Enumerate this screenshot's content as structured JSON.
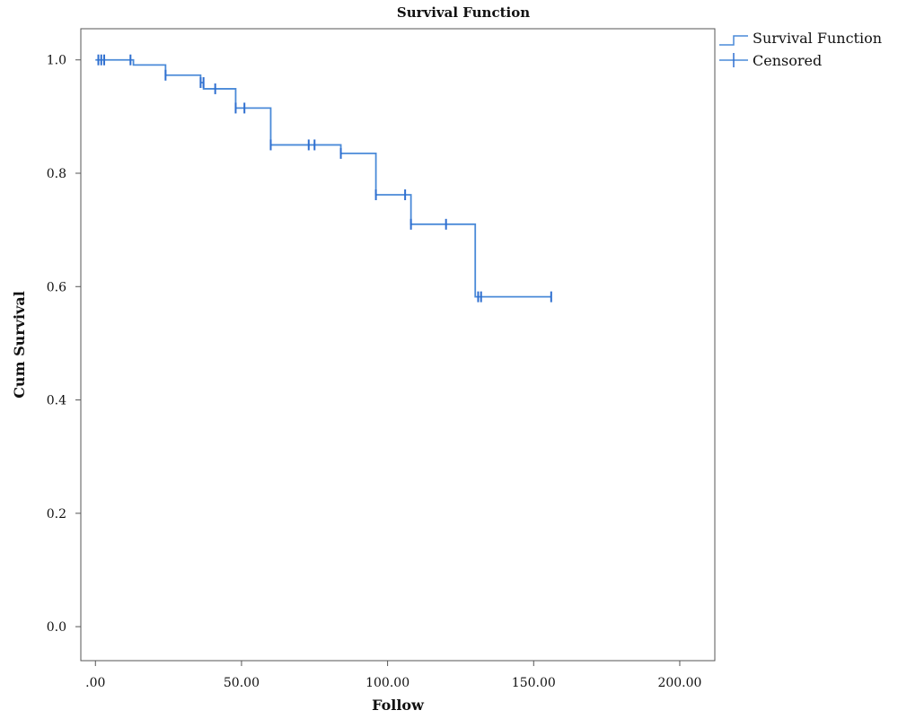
{
  "chart_data": {
    "type": "line",
    "title": "Survival Function",
    "xlabel": "Follow",
    "ylabel": "Cum Survival",
    "xlim": [
      -5,
      212
    ],
    "ylim": [
      -0.06,
      1.055
    ],
    "x_ticks": [
      0,
      50,
      100,
      150,
      200
    ],
    "x_tick_labels": [
      ".00",
      "50.00",
      "100.00",
      "150.00",
      "200.00"
    ],
    "y_ticks": [
      0,
      0.2,
      0.4,
      0.6,
      0.8,
      1.0
    ],
    "y_tick_labels": [
      "0.0",
      "0.2",
      "0.4",
      "0.6",
      "0.8",
      "1.0"
    ],
    "grid": false,
    "legend_position": "top-right-outside",
    "colors": {
      "survival": "#4a8ad8",
      "censored": "#2f6fd0"
    },
    "series": [
      {
        "name": "Survival Function",
        "kind": "step",
        "x": [
          0,
          13,
          24,
          36,
          37,
          48,
          60,
          84,
          96,
          108,
          130,
          156
        ],
        "y": [
          1.0,
          0.991,
          0.973,
          0.96,
          0.949,
          0.915,
          0.85,
          0.835,
          0.762,
          0.71,
          0.582,
          0.582
        ]
      },
      {
        "name": "Censored",
        "kind": "marker",
        "x": [
          1,
          2,
          3,
          12,
          24,
          36,
          37,
          41,
          48,
          51,
          60,
          73,
          75,
          84,
          96,
          106,
          108,
          120,
          131,
          132,
          156
        ],
        "y": [
          1.0,
          1.0,
          1.0,
          1.0,
          0.973,
          0.96,
          0.96,
          0.949,
          0.915,
          0.915,
          0.85,
          0.85,
          0.85,
          0.835,
          0.762,
          0.762,
          0.71,
          0.71,
          0.582,
          0.582,
          0.582
        ]
      }
    ]
  }
}
